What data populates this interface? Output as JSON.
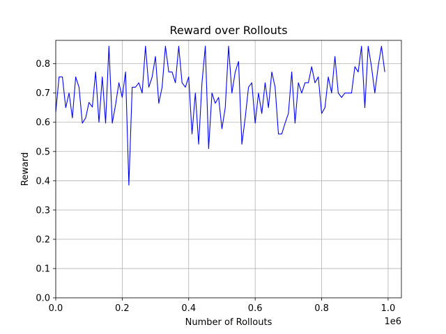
{
  "chart_data": {
    "type": "line",
    "title": "Reward over Rollouts",
    "xlabel": "Number of Rollouts",
    "ylabel": "Reward",
    "x_offset_label": "1e6",
    "xlim": [
      0,
      1040000
    ],
    "ylim": [
      0,
      0.88
    ],
    "x_ticks": [
      0,
      200000,
      400000,
      600000,
      800000,
      1000000
    ],
    "x_tick_labels": [
      "0.0",
      "0.2",
      "0.4",
      "0.6",
      "0.8",
      "1.0"
    ],
    "y_ticks": [
      0,
      0.1,
      0.2,
      0.3,
      0.4,
      0.5,
      0.6,
      0.7,
      0.8
    ],
    "y_tick_labels": [
      "0.0",
      "0.1",
      "0.2",
      "0.3",
      "0.4",
      "0.5",
      "0.6",
      "0.7",
      "0.8"
    ],
    "grid": true,
    "line_color": "#0000ff",
    "series": [
      {
        "x": [
          0,
          10000,
          20000,
          30000,
          40000,
          50000,
          60000,
          70000,
          80000,
          90000,
          100000,
          110000,
          120000,
          130000,
          140000,
          150000,
          160000,
          170000,
          180000,
          190000,
          200000,
          210000,
          220000,
          230000,
          240000,
          250000,
          260000,
          270000,
          280000,
          290000,
          300000,
          310000,
          320000,
          330000,
          340000,
          350000,
          360000,
          370000,
          380000,
          390000,
          400000,
          410000,
          420000,
          430000,
          440000,
          450000,
          460000,
          470000,
          480000,
          490000,
          500000,
          510000,
          520000,
          530000,
          540000,
          550000,
          560000,
          570000,
          580000,
          590000,
          600000,
          610000,
          620000,
          630000,
          640000,
          650000,
          660000,
          670000,
          680000,
          690000,
          700000,
          710000,
          720000,
          730000,
          740000,
          750000,
          760000,
          770000,
          780000,
          790000,
          800000,
          810000,
          820000,
          830000,
          840000,
          850000,
          860000,
          870000,
          880000,
          890000,
          900000,
          910000,
          920000,
          930000,
          940000,
          950000,
          960000,
          970000,
          980000,
          990000
        ],
        "values": [
          0.635,
          0.755,
          0.755,
          0.65,
          0.7,
          0.615,
          0.755,
          0.72,
          0.597,
          0.615,
          0.668,
          0.652,
          0.772,
          0.6,
          0.755,
          0.597,
          0.86,
          0.597,
          0.66,
          0.735,
          0.685,
          0.772,
          0.385,
          0.72,
          0.72,
          0.735,
          0.7,
          0.86,
          0.72,
          0.755,
          0.825,
          0.665,
          0.72,
          0.86,
          0.772,
          0.772,
          0.735,
          0.86,
          0.735,
          0.72,
          0.755,
          0.56,
          0.7,
          0.525,
          0.735,
          0.86,
          0.51,
          0.7,
          0.665,
          0.685,
          0.578,
          0.65,
          0.86,
          0.7,
          0.772,
          0.808,
          0.525,
          0.615,
          0.72,
          0.735,
          0.597,
          0.7,
          0.63,
          0.735,
          0.65,
          0.772,
          0.72,
          0.56,
          0.56,
          0.597,
          0.63,
          0.772,
          0.597,
          0.735,
          0.7,
          0.735,
          0.735,
          0.79,
          0.735,
          0.755,
          0.63,
          0.65,
          0.755,
          0.7,
          0.825,
          0.7,
          0.685,
          0.7,
          0.7,
          0.7,
          0.79,
          0.772,
          0.86,
          0.65,
          0.86,
          0.79,
          0.7,
          0.79,
          0.86,
          0.772
        ]
      }
    ]
  }
}
